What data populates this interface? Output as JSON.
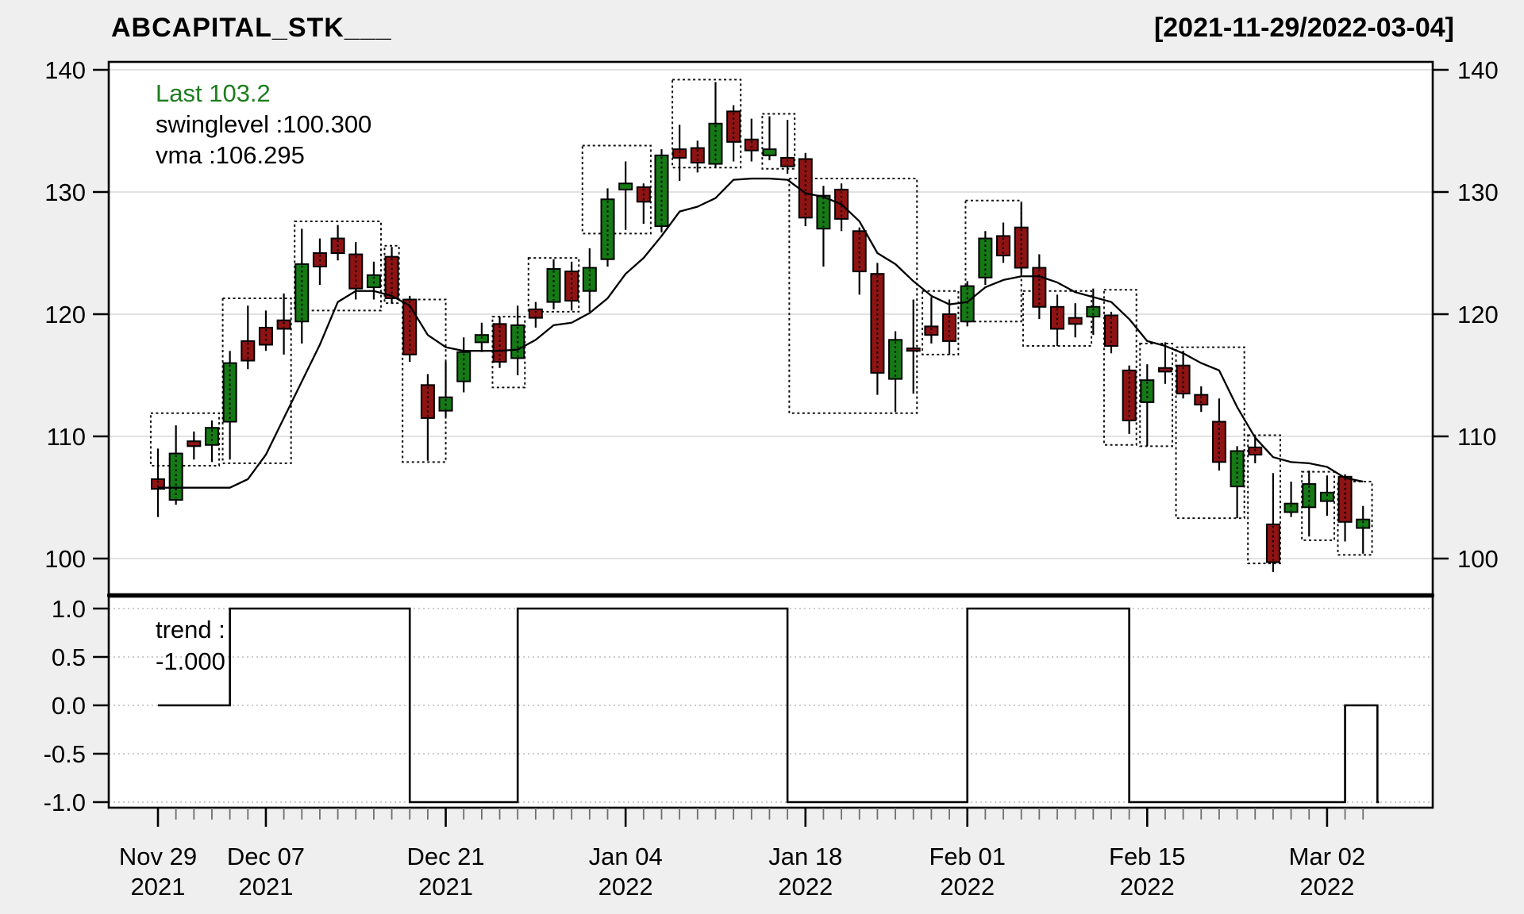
{
  "header": {
    "title": "ABCAPITAL_STK___",
    "date_range": "[2021-11-29/2022-03-04]"
  },
  "legend": {
    "last": "Last 103.2",
    "swinglevel": "swinglevel :100.300",
    "vma": "vma :106.295"
  },
  "trend_label": {
    "line1": "trend :",
    "line2": "-1.000"
  },
  "colors": {
    "up": "#157a15",
    "down": "#8e1313",
    "last_text": "#1e7d1e",
    "grid": "#d9d9d9",
    "trend_grid": "#cccccc",
    "border": "#000000",
    "bg_outside": "#efefef",
    "bg_plot": "#ffffff"
  },
  "chart_data": {
    "type": "candlestick",
    "title": "ABCAPITAL_STK___",
    "date_range": "[2021-11-29/2022-03-04]",
    "price_axis": {
      "ticks": [
        140,
        130,
        120,
        110,
        100
      ],
      "ylim": [
        97.1,
        140.7
      ]
    },
    "x_axis": {
      "major_labels": [
        {
          "index": 0,
          "line1": "Nov 29",
          "line2": "2021"
        },
        {
          "index": 6,
          "line1": "Dec 07",
          "line2": "2021"
        },
        {
          "index": 16,
          "line1": "Dec 21",
          "line2": "2021"
        },
        {
          "index": 26,
          "line1": "Jan 04",
          "line2": "2022"
        },
        {
          "index": 36,
          "line1": "Jan 18",
          "line2": "2022"
        },
        {
          "index": 45,
          "line1": "Feb 01",
          "line2": "2022"
        },
        {
          "index": 55,
          "line1": "Feb 15",
          "line2": "2022"
        },
        {
          "index": 65,
          "line1": "Mar 02",
          "line2": "2022"
        }
      ]
    },
    "candles": [
      [
        "2021-11-29",
        106.5,
        109.0,
        103.4,
        105.7
      ],
      [
        "2021-11-30",
        104.8,
        110.9,
        104.4,
        108.6
      ],
      [
        "2021-12-01",
        109.6,
        110.4,
        108.1,
        109.2
      ],
      [
        "2021-12-02",
        109.3,
        111.3,
        107.9,
        110.7
      ],
      [
        "2021-12-03",
        111.2,
        117.0,
        108.1,
        116.0
      ],
      [
        "2021-12-06",
        117.8,
        120.7,
        115.5,
        116.2
      ],
      [
        "2021-12-07",
        118.9,
        120.3,
        117.0,
        117.5
      ],
      [
        "2021-12-08",
        119.5,
        121.7,
        116.7,
        118.8
      ],
      [
        "2021-12-09",
        119.4,
        127.0,
        117.6,
        124.1
      ],
      [
        "2021-12-10",
        125.0,
        126.2,
        122.4,
        123.9
      ],
      [
        "2021-12-13",
        126.2,
        127.3,
        124.4,
        125.0
      ],
      [
        "2021-12-14",
        124.9,
        125.9,
        121.2,
        122.1
      ],
      [
        "2021-12-15",
        122.2,
        124.3,
        121.2,
        123.2
      ],
      [
        "2021-12-16",
        124.7,
        125.5,
        120.9,
        121.3
      ],
      [
        "2021-12-17",
        121.2,
        121.5,
        116.1,
        116.7
      ],
      [
        "2021-12-20",
        114.2,
        115.1,
        108.0,
        111.5
      ],
      [
        "2021-12-21",
        112.1,
        116.1,
        111.6,
        113.2
      ],
      [
        "2021-12-22",
        114.5,
        118.1,
        113.6,
        116.9
      ],
      [
        "2021-12-23",
        117.7,
        119.3,
        116.9,
        118.3
      ],
      [
        "2021-12-24",
        119.2,
        119.8,
        115.6,
        116.1
      ],
      [
        "2021-12-27",
        116.4,
        120.7,
        115.0,
        119.1
      ],
      [
        "2021-12-28",
        120.4,
        121.0,
        118.9,
        119.7
      ],
      [
        "2021-12-29",
        121.0,
        124.5,
        120.4,
        123.7
      ],
      [
        "2021-12-30",
        123.5,
        124.3,
        120.3,
        121.1
      ],
      [
        "2021-12-31",
        121.9,
        125.4,
        120.2,
        123.8
      ],
      [
        "2022-01-03",
        124.5,
        130.3,
        123.9,
        129.4
      ],
      [
        "2022-01-04",
        130.2,
        132.5,
        126.9,
        130.7
      ],
      [
        "2022-01-05",
        130.4,
        130.7,
        127.4,
        129.2
      ],
      [
        "2022-01-06",
        127.2,
        133.5,
        126.7,
        133.0
      ],
      [
        "2022-01-07",
        133.5,
        135.5,
        130.9,
        132.8
      ],
      [
        "2022-01-10",
        133.6,
        134.2,
        131.6,
        132.4
      ],
      [
        "2022-01-11",
        132.3,
        139.0,
        132.0,
        135.6
      ],
      [
        "2022-01-12",
        136.6,
        137.1,
        132.5,
        134.1
      ],
      [
        "2022-01-13",
        134.3,
        136.0,
        132.5,
        133.4
      ],
      [
        "2022-01-14",
        133.0,
        136.2,
        132.6,
        133.5
      ],
      [
        "2022-01-17",
        132.8,
        135.9,
        131.5,
        132.1
      ],
      [
        "2022-01-18",
        132.7,
        133.2,
        127.2,
        127.9
      ],
      [
        "2022-01-19",
        127.0,
        130.5,
        123.9,
        129.7
      ],
      [
        "2022-01-20",
        130.2,
        130.7,
        126.8,
        127.8
      ],
      [
        "2022-01-21",
        126.8,
        127.1,
        121.6,
        123.5
      ],
      [
        "2022-01-24",
        123.3,
        124.2,
        113.4,
        115.2
      ],
      [
        "2022-01-25",
        114.7,
        118.6,
        112.0,
        117.9
      ],
      [
        "2022-01-27",
        117.2,
        121.2,
        113.5,
        117.0
      ],
      [
        "2022-01-28",
        119.0,
        121.4,
        117.6,
        118.3
      ],
      [
        "2022-01-31",
        120.0,
        121.2,
        116.7,
        117.8
      ],
      [
        "2022-02-01",
        119.4,
        122.7,
        119.0,
        122.3
      ],
      [
        "2022-02-02",
        123.0,
        126.8,
        122.4,
        126.2
      ],
      [
        "2022-02-03",
        126.4,
        127.5,
        124.2,
        124.8
      ],
      [
        "2022-02-04",
        127.1,
        129.1,
        123.3,
        123.8
      ],
      [
        "2022-02-07",
        123.8,
        124.9,
        119.6,
        120.6
      ],
      [
        "2022-02-08",
        120.6,
        121.6,
        117.4,
        118.8
      ],
      [
        "2022-02-09",
        119.7,
        120.9,
        118.1,
        119.2
      ],
      [
        "2022-02-10",
        119.8,
        122.1,
        118.3,
        120.6
      ],
      [
        "2022-02-11",
        119.9,
        120.2,
        116.8,
        117.4
      ],
      [
        "2022-02-14",
        115.4,
        115.8,
        110.2,
        111.3
      ],
      [
        "2022-02-15",
        112.8,
        115.9,
        109.2,
        114.6
      ],
      [
        "2022-02-16",
        115.6,
        117.7,
        114.3,
        115.3
      ],
      [
        "2022-02-17",
        115.8,
        117.0,
        113.1,
        113.5
      ],
      [
        "2022-02-18",
        113.4,
        114.1,
        112.0,
        112.6
      ],
      [
        "2022-02-21",
        111.2,
        113.1,
        107.2,
        107.9
      ],
      [
        "2022-02-22",
        105.9,
        109.2,
        103.3,
        108.8
      ],
      [
        "2022-02-23",
        109.1,
        110.1,
        107.8,
        108.5
      ],
      [
        "2022-02-24",
        102.8,
        107.0,
        98.9,
        99.7
      ],
      [
        "2022-02-25",
        103.8,
        106.3,
        103.4,
        104.5
      ],
      [
        "2022-02-28",
        104.2,
        107.2,
        101.8,
        106.1
      ],
      [
        "2022-03-02",
        104.7,
        106.8,
        103.5,
        105.4
      ],
      [
        "2022-03-03",
        106.7,
        106.9,
        101.4,
        103.0
      ],
      [
        "2022-03-04",
        102.5,
        104.3,
        100.4,
        103.2
      ]
    ],
    "vma": [
      105.8,
      105.8,
      105.8,
      105.8,
      105.8,
      106.5,
      108.5,
      111.5,
      114.5,
      117.5,
      121.0,
      121.9,
      121.9,
      121.5,
      120.7,
      118.3,
      117.3,
      117.0,
      117.0,
      117.0,
      117.1,
      117.9,
      119.1,
      119.3,
      120.1,
      121.3,
      123.3,
      124.6,
      126.4,
      128.4,
      128.8,
      129.5,
      131.0,
      131.1,
      131.1,
      131.0,
      129.9,
      129.6,
      129.0,
      127.6,
      125.0,
      124.1,
      122.7,
      121.5,
      120.8,
      121.0,
      122.2,
      122.8,
      123.1,
      123.1,
      122.6,
      121.8,
      121.4,
      121.0,
      119.6,
      117.8,
      117.4,
      116.8,
      116.0,
      115.4,
      112.4,
      109.9,
      108.3,
      107.9,
      107.8,
      107.5,
      106.6,
      106.295
    ],
    "swing_boxes": [
      [
        -0.4,
        3.4,
        111.9,
        107.6
      ],
      [
        3.6,
        7.4,
        121.3,
        107.8
      ],
      [
        7.6,
        12.4,
        127.6,
        120.3
      ],
      [
        12.6,
        13.4,
        125.6,
        120.9
      ],
      [
        13.6,
        16.0,
        121.2,
        107.9
      ],
      [
        18.6,
        20.4,
        119.8,
        114.0
      ],
      [
        20.6,
        23.4,
        124.6,
        120.2
      ],
      [
        23.6,
        27.4,
        133.8,
        126.6
      ],
      [
        28.6,
        32.4,
        139.2,
        132.0
      ],
      [
        33.6,
        35.4,
        136.4,
        131.9
      ],
      [
        35.1,
        42.2,
        131.1,
        111.9
      ],
      [
        42.5,
        44.5,
        121.9,
        116.7
      ],
      [
        44.9,
        48.0,
        129.3,
        119.4
      ],
      [
        48.1,
        51.9,
        121.9,
        117.4
      ],
      [
        52.6,
        54.4,
        122.0,
        109.3
      ],
      [
        54.6,
        56.4,
        117.6,
        109.2
      ],
      [
        56.6,
        60.4,
        117.3,
        103.3
      ],
      [
        60.6,
        62.4,
        110.1,
        99.6
      ],
      [
        63.6,
        65.4,
        107.1,
        101.5
      ],
      [
        65.6,
        67.5,
        106.3,
        100.3
      ]
    ],
    "trend": {
      "ylim": [
        -1,
        1
      ],
      "yticks": [
        "1.0",
        "0.5",
        "0.0",
        "-0.5",
        "-1.0"
      ],
      "last_value": -1.0,
      "steps": [
        [
          0,
          0
        ],
        [
          4,
          1
        ],
        [
          14,
          -1
        ],
        [
          20,
          1
        ],
        [
          35,
          -1
        ],
        [
          45,
          1
        ],
        [
          54,
          -1
        ],
        [
          66,
          0
        ],
        [
          67.8,
          -1
        ]
      ]
    }
  }
}
